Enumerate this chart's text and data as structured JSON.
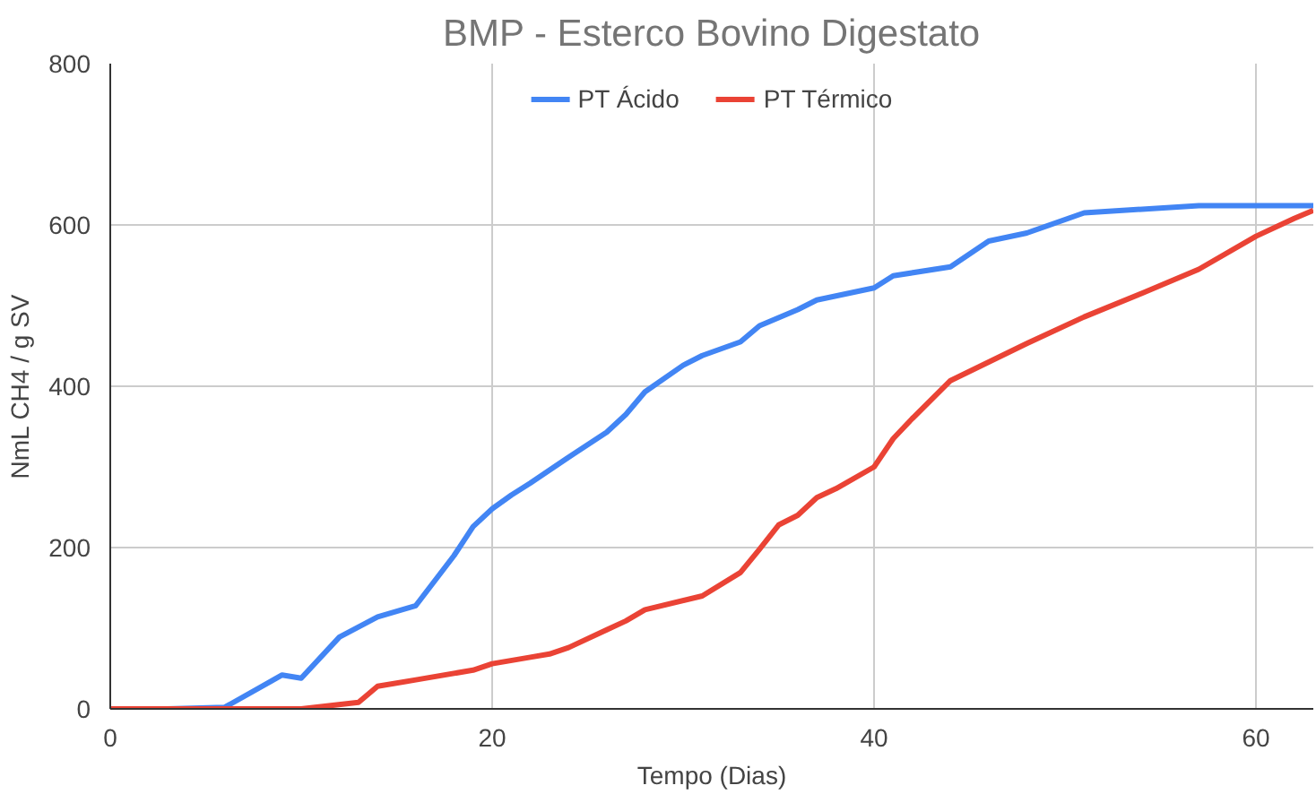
{
  "chart_data": {
    "type": "line",
    "title": "BMP - Esterco Bovino Digestato",
    "xlabel": "Tempo (Dias)",
    "ylabel": "NmL CH4 / g SV",
    "xlim": [
      0,
      63
    ],
    "xticks": [
      0,
      20,
      40,
      60
    ],
    "ylim": [
      0,
      800
    ],
    "yticks": [
      0,
      200,
      400,
      600,
      800
    ],
    "grid": true,
    "legend": "top",
    "marker": "none",
    "line_style": "solid",
    "series": [
      {
        "name": "PT Ácido",
        "color": "#4285f4",
        "x": [
          0,
          3,
          6,
          9,
          10,
          12,
          14,
          16,
          18,
          19,
          20,
          21,
          22,
          24,
          26,
          27,
          28,
          30,
          31,
          33,
          34,
          36,
          37,
          40,
          41,
          44,
          46,
          48,
          51,
          57,
          63
        ],
        "values": [
          0,
          0,
          2,
          42,
          38,
          89,
          114,
          128,
          190,
          226,
          248,
          265,
          280,
          312,
          343,
          365,
          393,
          426,
          438,
          455,
          475,
          495,
          507,
          522,
          537,
          548,
          580,
          590,
          615,
          624,
          624
        ]
      },
      {
        "name": "PT Térmico",
        "color": "#ea4335",
        "x": [
          0,
          10,
          13,
          14,
          16,
          19,
          20,
          22,
          23,
          24,
          26,
          27,
          28,
          31,
          33,
          34,
          35,
          36,
          37,
          38,
          40,
          41,
          42,
          44,
          46,
          48,
          51,
          54,
          57,
          60,
          62,
          63
        ],
        "values": [
          0,
          0,
          8,
          28,
          36,
          48,
          56,
          64,
          68,
          76,
          98,
          109,
          123,
          140,
          169,
          198,
          228,
          240,
          262,
          273,
          300,
          335,
          360,
          407,
          430,
          453,
          486,
          515,
          545,
          586,
          608,
          618
        ]
      }
    ]
  }
}
